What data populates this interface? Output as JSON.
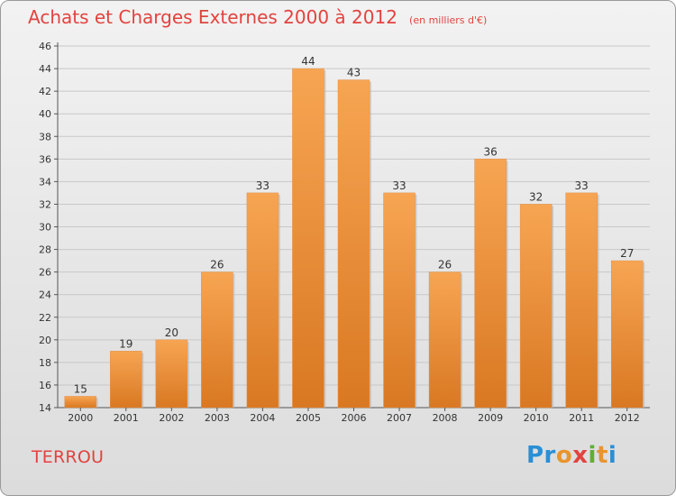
{
  "title": "Achats et Charges Externes 2000 à 2012",
  "subtitle": "(en milliers d'€)",
  "commune": "TERROU",
  "logo_text": "Proxiti",
  "colors": {
    "bar_top": "#f7a553",
    "bar_bottom": "#d97822",
    "title": "#e2433f"
  },
  "chart_data": {
    "type": "bar",
    "title": "Achats et Charges Externes 2000 à 2012",
    "subtitle": "(en milliers d'€)",
    "categories": [
      "2000",
      "2001",
      "2002",
      "2003",
      "2004",
      "2005",
      "2006",
      "2007",
      "2008",
      "2009",
      "2010",
      "2011",
      "2012"
    ],
    "values": [
      15,
      19,
      20,
      26,
      33,
      44,
      43,
      33,
      26,
      36,
      32,
      33,
      27
    ],
    "xlabel": "",
    "ylabel": "",
    "ylim": [
      14,
      46
    ],
    "yticks": [
      14,
      16,
      18,
      20,
      22,
      24,
      26,
      28,
      30,
      32,
      34,
      36,
      38,
      40,
      42,
      44,
      46
    ],
    "grid": true,
    "legend": "none"
  }
}
